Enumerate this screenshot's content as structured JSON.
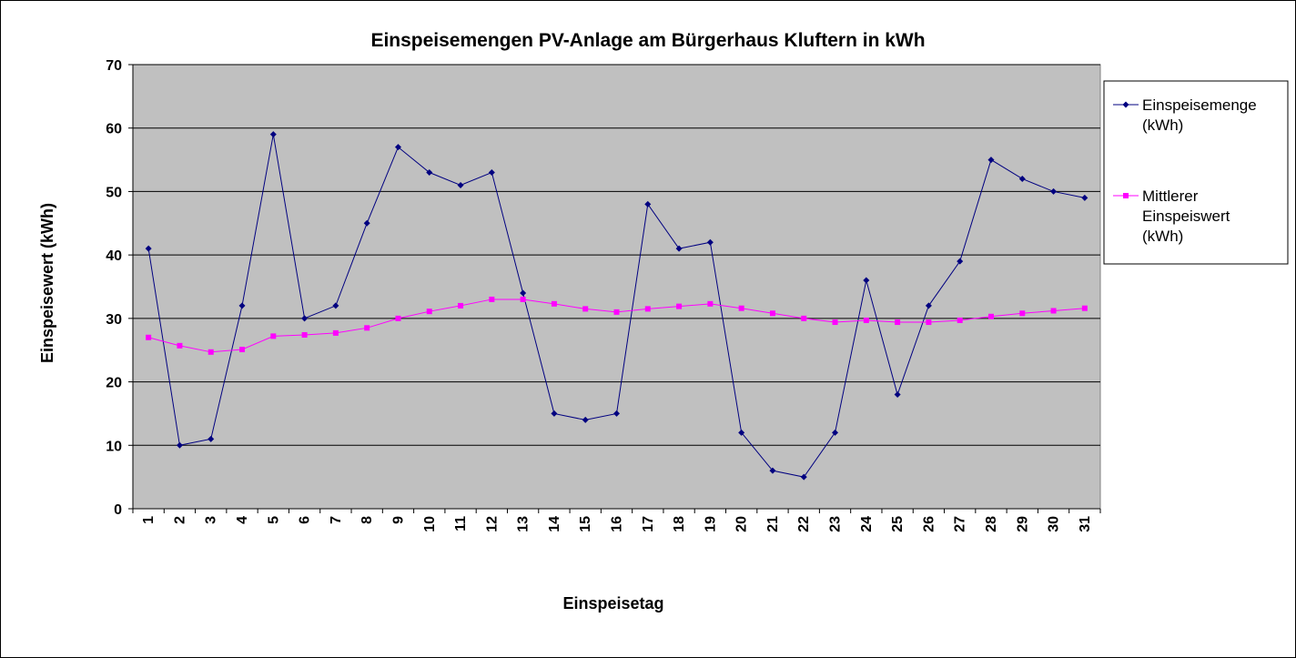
{
  "chart_data": {
    "type": "line",
    "title": "Einspeisemengen PV-Anlage am Bürgerhaus Kluftern in kWh",
    "xlabel": "Einspeisetag",
    "ylabel": "Einspeisewert (kWh)",
    "ylim": [
      0,
      70
    ],
    "yticks": [
      0,
      10,
      20,
      30,
      40,
      50,
      60,
      70
    ],
    "grid": "horizontal",
    "plot_background": "#c0c0c0",
    "legend_position": "right",
    "categories": [
      "1",
      "2",
      "3",
      "4",
      "5",
      "6",
      "7",
      "8",
      "9",
      "10",
      "11",
      "12",
      "13",
      "14",
      "15",
      "16",
      "17",
      "18",
      "19",
      "20",
      "21",
      "22",
      "23",
      "24",
      "25",
      "26",
      "27",
      "28",
      "29",
      "30",
      "31"
    ],
    "series": [
      {
        "name_lines": [
          "Einspeisemenge",
          "(kWh)"
        ],
        "color": "#000080",
        "marker": "diamond",
        "values": [
          41,
          10,
          11,
          32,
          59,
          30,
          32,
          45,
          57,
          53,
          51,
          53,
          34,
          15,
          14,
          15,
          48,
          41,
          42,
          12,
          6,
          5,
          12,
          36,
          18,
          32,
          39,
          55,
          52,
          50,
          49
        ]
      },
      {
        "name_lines": [
          "Mittlerer",
          "Einspeiswert",
          "(kWh)"
        ],
        "color": "#ff00ff",
        "marker": "square",
        "values": [
          27,
          25.7,
          24.7,
          25.1,
          27.2,
          27.4,
          27.7,
          28.5,
          30,
          31.1,
          32,
          33,
          33,
          32.3,
          31.5,
          31,
          31.5,
          31.9,
          32.3,
          31.6,
          30.8,
          30,
          29.4,
          29.7,
          29.4,
          29.4,
          29.7,
          30.3,
          30.8,
          31.2,
          31.6
        ]
      }
    ]
  }
}
